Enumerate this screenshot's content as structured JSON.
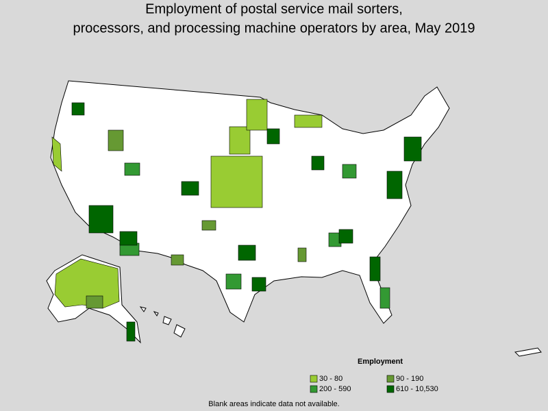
{
  "header": {
    "title": [
      "Employment of postal service mail sorters,",
      "processors, and processing machine operators by area, May 2019"
    ]
  },
  "legend": {
    "title": "Employment",
    "items": [
      {
        "label": "30 - 80",
        "color": "#99cc33"
      },
      {
        "label": "90 - 190",
        "color": "#669933"
      },
      {
        "label": "200 - 590",
        "color": "#339933"
      },
      {
        "label": "610 - 10,530",
        "color": "#006600"
      }
    ]
  },
  "note": "Blank areas indicate data not available."
}
